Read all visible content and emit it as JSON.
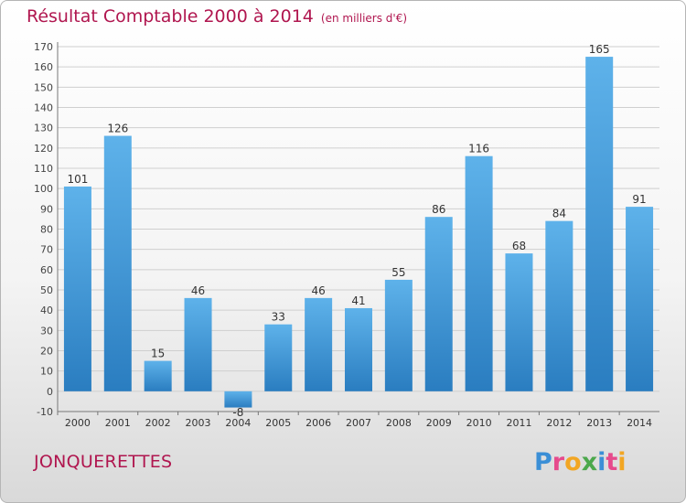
{
  "title": "Résultat Comptable 2000 à 2014",
  "unit": "(en milliers d'€)",
  "place": "JONQUERETTES",
  "brand": "Proxiti",
  "colors": {
    "title": "#b0164f",
    "bar_light": "#5eb2ea",
    "bar_dark": "#2a7dc0",
    "grid": "#cfcfcf"
  },
  "chart_data": {
    "type": "bar",
    "categories": [
      "2000",
      "2001",
      "2002",
      "2003",
      "2004",
      "2005",
      "2006",
      "2007",
      "2008",
      "2009",
      "2010",
      "2011",
      "2012",
      "2013",
      "2014"
    ],
    "values": [
      101,
      126,
      15,
      46,
      -8,
      33,
      46,
      41,
      55,
      86,
      116,
      68,
      84,
      165,
      91
    ],
    "data_labels": [
      "101",
      "126",
      "15",
      "46",
      "-8",
      "33",
      "46",
      "41",
      "55",
      "86",
      "116",
      "68",
      "84",
      "165",
      "91"
    ],
    "y_ticks": [
      -10,
      0,
      10,
      20,
      30,
      40,
      50,
      60,
      70,
      80,
      90,
      100,
      110,
      120,
      130,
      140,
      150,
      160,
      170
    ],
    "ylim": [
      -10,
      170
    ],
    "grid": true,
    "xlabel": "",
    "ylabel": ""
  }
}
